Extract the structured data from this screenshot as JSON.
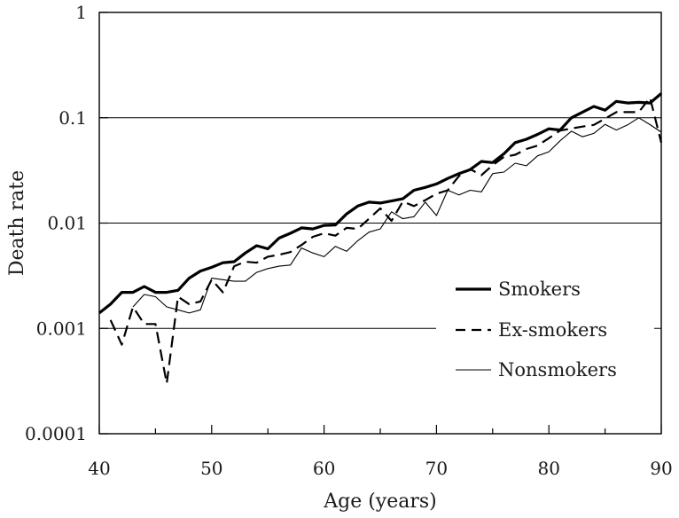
{
  "chart_data": {
    "type": "line",
    "title": "",
    "xlabel": "Age (years)",
    "ylabel": "Death rate",
    "xlim": [
      40,
      90
    ],
    "ylim": [
      0.0001,
      1
    ],
    "yscale": "log",
    "grid": "horizontal lines at 0.001, 0.01 and 0.1",
    "legend_position": "bottom-right",
    "x_ticks": [
      40,
      50,
      60,
      70,
      80,
      90
    ],
    "x_tick_labels": [
      "40",
      "50",
      "60",
      "70",
      "80",
      "90"
    ],
    "y_ticks": [
      0.0001,
      0.001,
      0.01,
      0.1,
      1
    ],
    "y_tick_labels": [
      "0.0001",
      "0.001",
      "0.01",
      "0.1",
      "1"
    ],
    "x": [
      40,
      41,
      42,
      43,
      44,
      45,
      46,
      47,
      48,
      49,
      50,
      51,
      52,
      53,
      54,
      55,
      56,
      57,
      58,
      59,
      60,
      61,
      62,
      63,
      64,
      65,
      66,
      67,
      68,
      69,
      70,
      71,
      72,
      73,
      74,
      75,
      76,
      77,
      78,
      79,
      80,
      81,
      82,
      83,
      84,
      85,
      86,
      87,
      88,
      89,
      90
    ],
    "series": [
      {
        "name": "Smokers",
        "color": "#000000",
        "style": "solid-thick",
        "values": [
          0.0014,
          0.0017,
          0.0022,
          0.0022,
          0.0025,
          0.0022,
          0.0022,
          0.0023,
          0.003,
          0.0035,
          0.0038,
          0.0042,
          0.0043,
          0.0052,
          0.0061,
          0.0057,
          0.0072,
          0.008,
          0.009,
          0.0088,
          0.0095,
          0.0096,
          0.0122,
          0.0145,
          0.0158,
          0.0155,
          0.0162,
          0.017,
          0.0205,
          0.0218,
          0.0235,
          0.0265,
          0.0295,
          0.0322,
          0.0385,
          0.0375,
          0.0455,
          0.058,
          0.0625,
          0.0695,
          0.0785,
          0.0765,
          0.1,
          0.113,
          0.128,
          0.118,
          0.143,
          0.138,
          0.14,
          0.138,
          0.17
        ]
      },
      {
        "name": "Ex-smokers",
        "color": "#000000",
        "style": "dashed",
        "values": [
          null,
          0.0012,
          0.0007,
          0.0016,
          0.0011,
          0.0011,
          0.0003,
          0.002,
          0.0017,
          0.0018,
          0.0029,
          0.0022,
          0.0039,
          0.0043,
          0.0042,
          0.0048,
          0.005,
          0.0053,
          0.0062,
          0.0074,
          0.008,
          0.0076,
          0.009,
          0.0088,
          0.011,
          0.0138,
          0.0105,
          0.016,
          0.0145,
          0.0165,
          0.019,
          0.0205,
          0.028,
          0.0325,
          0.0285,
          0.0355,
          0.0425,
          0.0445,
          0.0505,
          0.0545,
          0.064,
          0.0755,
          0.079,
          0.0825,
          0.0855,
          0.098,
          0.113,
          0.113,
          0.113,
          0.155,
          0.058
        ]
      },
      {
        "name": "Nonsmokers",
        "color": "#000000",
        "style": "solid-thin",
        "values": [
          null,
          null,
          null,
          0.0016,
          0.0021,
          0.002,
          0.0016,
          0.0015,
          0.0014,
          0.0015,
          0.003,
          0.0029,
          0.0028,
          0.0028,
          0.0034,
          0.0037,
          0.0039,
          0.004,
          0.0058,
          0.0052,
          0.0048,
          0.006,
          0.0054,
          0.0068,
          0.0082,
          0.0088,
          0.0128,
          0.011,
          0.0115,
          0.0158,
          0.0118,
          0.0205,
          0.0185,
          0.0205,
          0.0198,
          0.0295,
          0.0305,
          0.037,
          0.035,
          0.0435,
          0.0475,
          0.0605,
          0.0745,
          0.066,
          0.071,
          0.0865,
          0.0765,
          0.0855,
          0.1,
          0.086,
          0.073
        ]
      }
    ]
  }
}
